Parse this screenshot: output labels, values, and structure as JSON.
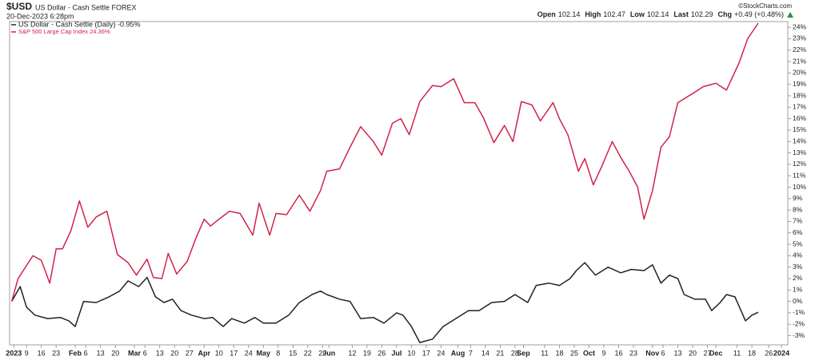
{
  "header": {
    "symbol": "$USD",
    "name": "US Dollar - Cash Settle FOREX",
    "datetime": "20-Dec-2023 6:28pm",
    "copyright": "©StockCharts.com",
    "quote": [
      {
        "label": "Open",
        "value": 102.14
      },
      {
        "label": "High",
        "value": 102.47
      },
      {
        "label": "Low",
        "value": 102.14
      },
      {
        "label": "Last",
        "value": 102.29
      },
      {
        "label": "Chg",
        "value": "+0.49 (+0.48%)"
      }
    ]
  },
  "chart_data": {
    "type": "line",
    "xlim": [
      1,
      369
    ],
    "xticks": [
      {
        "value": 3,
        "label": "2023"
      },
      9,
      16,
      23,
      {
        "value": 32,
        "label": "Feb"
      },
      {
        "value": 37,
        "label": "6"
      },
      {
        "value": 44,
        "label": "13"
      },
      {
        "value": 51,
        "label": "20"
      },
      {
        "value": 60,
        "label": "Mar"
      },
      {
        "value": 65,
        "label": "6"
      },
      {
        "value": 72,
        "label": "13"
      },
      {
        "value": 79,
        "label": "20"
      },
      {
        "value": 86,
        "label": "27"
      },
      {
        "value": 93,
        "label": "Apr"
      },
      {
        "value": 100,
        "label": "10"
      },
      {
        "value": 107,
        "label": "17"
      },
      {
        "value": 114,
        "label": "24"
      },
      {
        "value": 121,
        "label": "May"
      },
      {
        "value": 128,
        "label": "8"
      },
      {
        "value": 135,
        "label": "15"
      },
      {
        "value": 142,
        "label": "22"
      },
      {
        "value": 149,
        "label": "29"
      },
      {
        "value": 152,
        "label": "Jun"
      },
      {
        "value": 163,
        "label": "12"
      },
      {
        "value": 170,
        "label": "19"
      },
      {
        "value": 177,
        "label": "26"
      },
      {
        "value": 184,
        "label": "Jul"
      },
      {
        "value": 191,
        "label": "10"
      },
      {
        "value": 198,
        "label": "17"
      },
      {
        "value": 205,
        "label": "24"
      },
      {
        "value": 213,
        "label": "Aug"
      },
      {
        "value": 219,
        "label": "7"
      },
      {
        "value": 226,
        "label": "14"
      },
      {
        "value": 233,
        "label": "21"
      },
      {
        "value": 240,
        "label": "28"
      },
      {
        "value": 244,
        "label": "Sep"
      },
      {
        "value": 254,
        "label": "11"
      },
      {
        "value": 261,
        "label": "18"
      },
      {
        "value": 268,
        "label": "25"
      },
      {
        "value": 275,
        "label": "Oct"
      },
      {
        "value": 282,
        "label": "9"
      },
      {
        "value": 289,
        "label": "16"
      },
      {
        "value": 296,
        "label": "23"
      },
      {
        "value": 305,
        "label": "Nov"
      },
      {
        "value": 310,
        "label": "6"
      },
      {
        "value": 317,
        "label": "13"
      },
      {
        "value": 324,
        "label": "20"
      },
      {
        "value": 331,
        "label": "27"
      },
      {
        "value": 335,
        "label": "Dec"
      },
      {
        "value": 345,
        "label": "11"
      },
      {
        "value": 352,
        "label": "18"
      },
      {
        "value": 360,
        "label": "26"
      },
      {
        "value": 366,
        "label": "2024"
      }
    ],
    "ylim": [
      -3.8,
      24.5
    ],
    "yticks": [
      {
        "value": 24,
        "label": "24%"
      },
      {
        "value": 23,
        "label": "23%"
      },
      {
        "value": 22,
        "label": "22%"
      },
      {
        "value": 21,
        "label": "21%"
      },
      {
        "value": 20,
        "label": "20%"
      },
      {
        "value": 19,
        "label": "19%"
      },
      {
        "value": 18,
        "label": "18%"
      },
      {
        "value": 17,
        "label": "17%"
      },
      {
        "value": 16,
        "label": "16%"
      },
      {
        "value": 15,
        "label": "15%"
      },
      {
        "value": 14,
        "label": "14%"
      },
      {
        "value": 13,
        "label": "13%"
      },
      {
        "value": 12,
        "label": "12%"
      },
      {
        "value": 11,
        "label": "11%"
      },
      {
        "value": 10,
        "label": "10%"
      },
      {
        "value": 9,
        "label": "9%"
      },
      {
        "value": 8,
        "label": "8%"
      },
      {
        "value": 7,
        "label": "7%"
      },
      {
        "value": 6,
        "label": "6%"
      },
      {
        "value": 5,
        "label": "5%"
      },
      {
        "value": 4,
        "label": "4%"
      },
      {
        "value": 3,
        "label": "3%"
      },
      {
        "value": 2,
        "label": "2%"
      },
      {
        "value": 1,
        "label": "1%"
      },
      {
        "value": 0,
        "label": "0%"
      },
      {
        "value": -1,
        "label": "-1%"
      },
      {
        "value": -2,
        "label": "-2%"
      },
      {
        "value": -3,
        "label": "-3%"
      }
    ],
    "grid": false,
    "series": [
      {
        "name": "US Dollar - Cash Settle (Daily) -0.95%",
        "color": "#222222",
        "x": [
          2,
          6,
          9,
          13,
          19,
          25,
          29,
          32,
          36,
          42,
          48,
          53,
          57,
          62,
          66,
          70,
          74,
          78,
          82,
          87,
          93,
          97,
          102,
          106,
          112,
          117,
          121,
          127,
          133,
          138,
          144,
          148,
          151,
          157,
          162,
          167,
          173,
          178,
          184,
          187,
          191,
          195,
          201,
          206,
          212,
          218,
          223,
          229,
          235,
          240,
          246,
          250,
          256,
          261,
          266,
          269,
          273,
          278,
          284,
          290,
          295,
          301,
          305,
          309,
          313,
          317,
          320,
          325,
          330,
          333,
          337,
          340,
          344,
          349,
          352,
          355
        ],
        "values": [
          0,
          1.3,
          -0.5,
          -1.2,
          -1.5,
          -1.4,
          -1.7,
          -2.2,
          0,
          -0.1,
          0.4,
          0.9,
          1.8,
          1.3,
          2.1,
          0.4,
          -0.1,
          0.2,
          -0.8,
          -1.2,
          -1.5,
          -1.4,
          -2.2,
          -1.5,
          -1.9,
          -1.4,
          -1.9,
          -1.9,
          -1.2,
          -0.1,
          0.6,
          0.9,
          0.6,
          0.2,
          0,
          -1.5,
          -1.4,
          -1.9,
          -1.0,
          -1.2,
          -2.2,
          -3.6,
          -3.3,
          -2.2,
          -1.5,
          -0.8,
          -0.8,
          -0.1,
          0,
          0.6,
          -0.1,
          1.4,
          1.6,
          1.4,
          2.0,
          2.7,
          3.4,
          2.3,
          3.0,
          2.5,
          2.8,
          2.7,
          3.2,
          1.6,
          2.3,
          2.0,
          0.6,
          0.2,
          0.2,
          -0.8,
          -0.1,
          0.6,
          0.4,
          -1.7,
          -1.2,
          -0.95
        ]
      },
      {
        "name": "S&P 500 Large Cap Index 24.36%",
        "color": "#d0234b",
        "x": [
          2,
          5,
          12,
          16,
          20,
          23,
          26,
          30,
          34,
          38,
          42,
          47,
          52,
          57,
          61,
          66,
          69,
          73,
          76,
          80,
          85,
          89,
          93,
          96,
          100,
          105,
          110,
          116,
          119,
          124,
          127,
          132,
          138,
          143,
          148,
          151,
          157,
          162,
          167,
          173,
          177,
          182,
          186,
          190,
          195,
          201,
          205,
          211,
          216,
          221,
          225,
          230,
          235,
          239,
          243,
          248,
          252,
          258,
          261,
          265,
          270,
          273,
          277,
          281,
          286,
          290,
          294,
          298,
          301,
          305,
          309,
          313,
          317,
          324,
          329,
          335,
          340,
          346,
          350,
          355
        ],
        "values": [
          0,
          2.0,
          4.0,
          3.6,
          1.6,
          4.6,
          4.6,
          6.2,
          8.8,
          6.5,
          7.4,
          7.9,
          4.1,
          3.4,
          2.3,
          3.7,
          2.1,
          2.0,
          4.2,
          2.4,
          3.5,
          5.5,
          7.2,
          6.6,
          7.2,
          7.9,
          7.7,
          5.8,
          8.6,
          5.8,
          7.7,
          7.6,
          9.3,
          7.9,
          9.7,
          11.4,
          11.6,
          13.5,
          15.3,
          14.0,
          12.8,
          15.6,
          16.0,
          14.6,
          17.5,
          18.9,
          18.8,
          19.5,
          17.4,
          17.4,
          16.1,
          13.9,
          15.4,
          14.0,
          17.5,
          17.2,
          15.8,
          17.4,
          16.0,
          14.6,
          11.4,
          12.5,
          10.2,
          11.8,
          14.0,
          12.6,
          11.4,
          10.0,
          7.2,
          9.7,
          13.5,
          14.4,
          17.4,
          18.2,
          18.8,
          19.1,
          18.5,
          20.9,
          23.0,
          24.36
        ]
      }
    ]
  }
}
